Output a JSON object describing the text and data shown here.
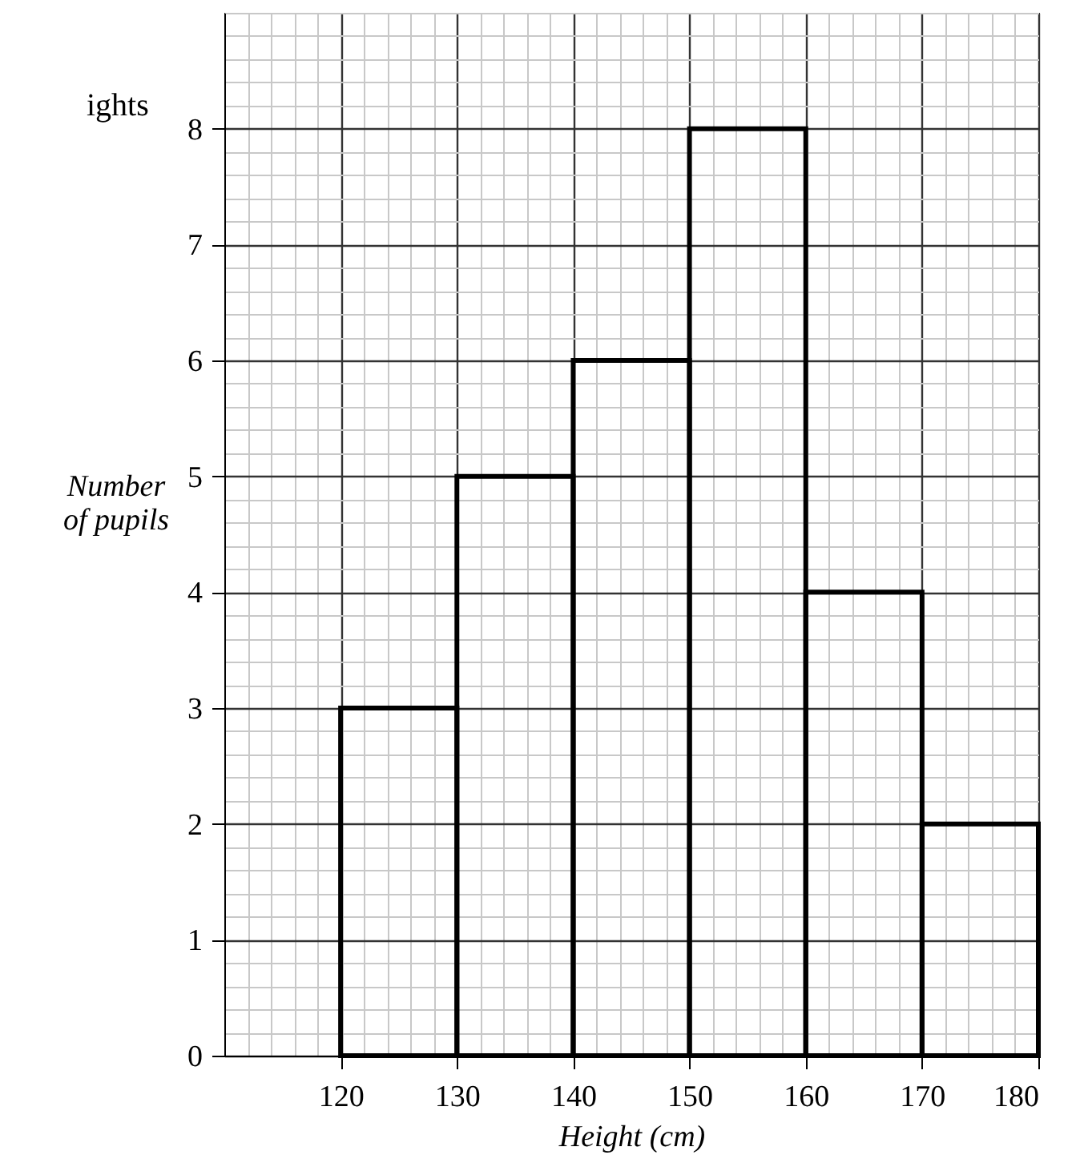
{
  "chart_data": {
    "type": "histogram",
    "title": "ights",
    "xlabel": "Height (cm)",
    "ylabel": "Number of pupils",
    "bins": [
      120,
      130,
      140,
      150,
      160,
      170,
      180
    ],
    "values": [
      3,
      5,
      6,
      8,
      4,
      2
    ],
    "color": "#000000",
    "xlim": [
      110,
      180
    ],
    "ylim": [
      0,
      9
    ],
    "xticks": [
      120,
      130,
      140,
      150,
      160,
      170,
      180
    ],
    "yticks": [
      0,
      1,
      2,
      3,
      4,
      5,
      6,
      7,
      8
    ],
    "grid": true
  }
}
